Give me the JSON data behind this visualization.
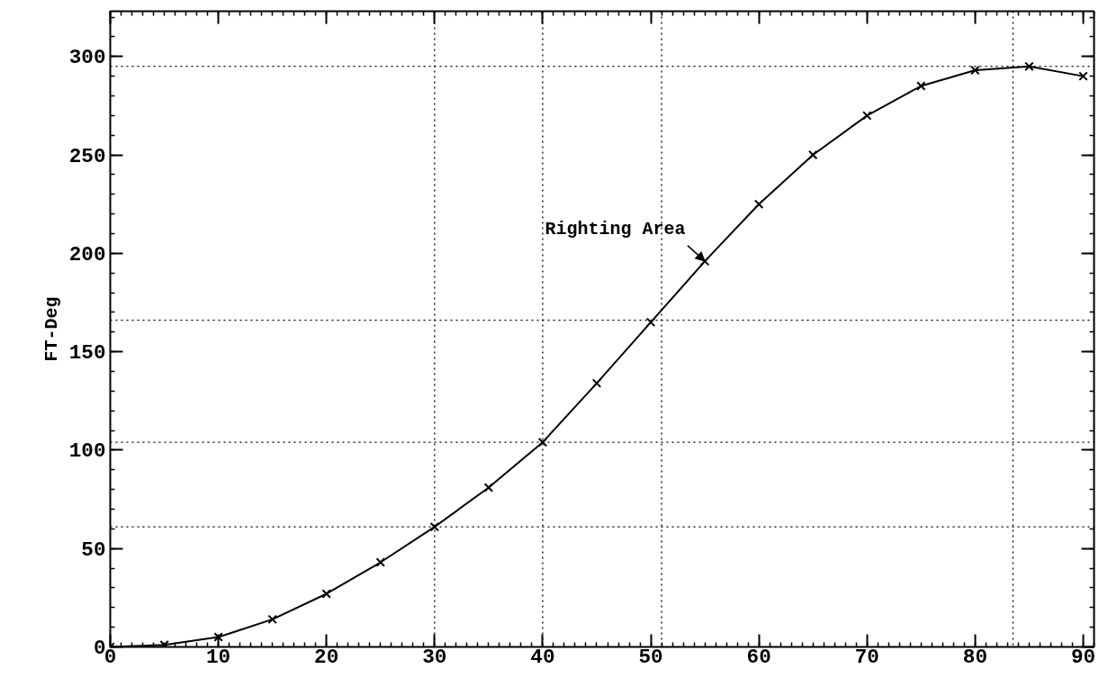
{
  "chart_data": {
    "type": "line",
    "x": [
      0,
      5,
      10,
      15,
      20,
      25,
      30,
      35,
      40,
      45,
      50,
      55,
      60,
      65,
      70,
      75,
      80,
      85,
      90
    ],
    "series": [
      {
        "color": "#000000",
        "values": [
          0,
          1,
          5,
          14,
          27,
          43,
          61,
          81,
          104,
          134,
          165,
          196,
          225,
          250,
          270,
          285,
          293,
          295,
          290
        ]
      }
    ],
    "ylabel": "FT-Deg",
    "xlim": [
      0,
      91
    ],
    "ylim": [
      0,
      323
    ],
    "xticks": [
      0,
      10,
      20,
      30,
      40,
      50,
      60,
      70,
      80,
      90
    ],
    "yticks": [
      0,
      50,
      100,
      150,
      200,
      250,
      300
    ],
    "grid": false,
    "marker": "cross",
    "line_style": "solid",
    "annotations": [
      {
        "text": "Righting Area",
        "x": 55,
        "y": 196
      }
    ],
    "ref_lines": [
      {
        "axis": "x",
        "value": 30,
        "color": "#000000",
        "line_style": "dotted"
      },
      {
        "axis": "x",
        "value": 40,
        "color": "#000000",
        "line_style": "dotted"
      },
      {
        "axis": "x",
        "value": 51,
        "color": "#000000",
        "line_style": "dotted"
      },
      {
        "axis": "x",
        "value": 83.5,
        "color": "#000000",
        "line_style": "dotted"
      },
      {
        "axis": "y",
        "value": 61,
        "color": "#000000",
        "line_style": "dotted"
      },
      {
        "axis": "y",
        "value": 104,
        "color": "#000000",
        "line_style": "dotted"
      },
      {
        "axis": "y",
        "value": 166,
        "color": "#000000",
        "line_style": "dotted"
      },
      {
        "axis": "y",
        "value": 295,
        "color": "#000000",
        "line_style": "dotted"
      }
    ]
  }
}
